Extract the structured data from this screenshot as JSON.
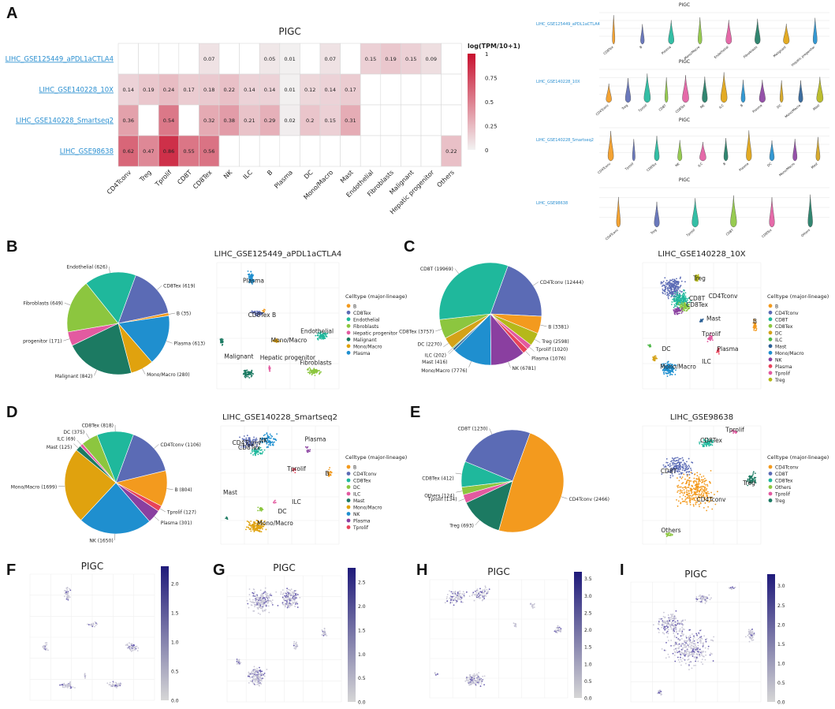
{
  "panels": {
    "A": "A",
    "B": "B",
    "C": "C",
    "D": "D",
    "E": "E",
    "F": "F",
    "G": "G",
    "H": "H",
    "I": "I"
  },
  "heatmap": {
    "title": "PIGC",
    "legend_title": "log(TPM/10+1)",
    "legend_ticks": [
      "1",
      "0.75",
      "0.5",
      "0.25",
      "0"
    ],
    "legend_tick_values": [
      1,
      0.75,
      0.5,
      0.25,
      0
    ],
    "rows": [
      "LIHC_GSE125449_aPDL1aCTLA4",
      "LIHC_GSE140228_10X",
      "LIHC_GSE140228_Smartseq2",
      "LIHC_GSE98638"
    ],
    "cols": [
      "CD4Tconv",
      "Treg",
      "Tprolif",
      "CD8T",
      "CD8Tex",
      "NK",
      "ILC",
      "B",
      "Plasma",
      "DC",
      "Mono/Macro",
      "Mast",
      "Endothelial",
      "Fibroblasts",
      "Malignant",
      "Hepatic progenitor",
      "Others"
    ],
    "cells": [
      [
        null,
        null,
        null,
        null,
        "0.07",
        null,
        null,
        "0.05",
        "0.01",
        null,
        "0.07",
        null,
        "0.15",
        "0.19",
        "0.15",
        "0.09",
        null
      ],
      [
        "0.14",
        "0.19",
        "0.24",
        "0.17",
        "0.18",
        "0.22",
        "0.14",
        "0.14",
        "0.01",
        "0.12",
        "0.14",
        "0.17",
        null,
        null,
        null,
        null,
        null
      ],
      [
        "0.36",
        null,
        "0.54",
        null,
        "0.32",
        "0.38",
        "0.21",
        "0.29",
        "0.02",
        "0.2",
        "0.15",
        "0.31",
        null,
        null,
        null,
        null,
        null
      ],
      [
        "0.62",
        "0.47",
        "0.86",
        "0.55",
        "0.56",
        null,
        null,
        null,
        null,
        null,
        null,
        null,
        null,
        null,
        null,
        null,
        "0.22"
      ]
    ]
  },
  "violin_blocks": [
    {
      "title": "PIGC",
      "label": "LIHC_GSE125449_aPDL1aCTLA4",
      "cats": [
        "CD8Tex",
        "B",
        "Plasma",
        "Mono/Macro",
        "Endothelial",
        "Fibroblasts",
        "Malignant",
        "Hepatic progenitor"
      ]
    },
    {
      "title": "PIGC",
      "label": "LIHC_GSE140228_10X",
      "cats": [
        "CD4Tconv",
        "Treg",
        "Tprolif",
        "CD8T",
        "CD8Tex",
        "NK",
        "ILC",
        "B",
        "Plasma",
        "DC",
        "Mono/Macro",
        "Mast"
      ]
    },
    {
      "title": "PIGC",
      "label": "LIHC_GSE140228_Smartseq2",
      "cats": [
        "CD4Tconv",
        "Tprolif",
        "CD8Tex",
        "NK",
        "ILC",
        "B",
        "Plasma",
        "DC",
        "Mono/Macro",
        "Mast"
      ]
    },
    {
      "title": "PIGC",
      "label": "LIHC_GSE98638",
      "cats": [
        "CD4Tconv",
        "Treg",
        "Tprolif",
        "CD8T",
        "CD8Tex",
        "Others"
      ]
    }
  ],
  "legend_title": "Celltype (major-lineage)",
  "pies": {
    "B": {
      "slices": [
        {
          "label": "CD8Tex (619)",
          "value": 619,
          "color": "#5b6bb5"
        },
        {
          "label": "B (35)",
          "value": 35,
          "color": "#f39a1e"
        },
        {
          "label": "Plasma (613)",
          "value": 613,
          "color": "#1f8fcf"
        },
        {
          "label": "Mono/Macro (280)",
          "value": 280,
          "color": "#e0a20e"
        },
        {
          "label": "Malignant (842)",
          "value": 842,
          "color": "#1c7a62"
        },
        {
          "label": "progenitor (171)",
          "value": 171,
          "color": "#e35aa0"
        },
        {
          "label": "Fibroblasts (649)",
          "value": 649,
          "color": "#8cc63f"
        },
        {
          "label": "Endothelial (626)",
          "value": 626,
          "color": "#1fb89c"
        }
      ]
    },
    "C": {
      "slices": [
        {
          "label": "CD4Tconv (12444)",
          "value": 12444,
          "color": "#5b6bb5"
        },
        {
          "label": "B (3381)",
          "value": 3381,
          "color": "#f39a1e"
        },
        {
          "label": "Treg (2598)",
          "value": 2598,
          "color": "#b5b81a"
        },
        {
          "label": "Tprolif (1020)",
          "value": 1020,
          "color": "#e35aa0"
        },
        {
          "label": "Plasma (1076)",
          "value": 1076,
          "color": "#e8435a"
        },
        {
          "label": "NK (6781)",
          "value": 6781,
          "color": "#8a3fa0"
        },
        {
          "label": "Mono/Macro (7776)",
          "value": 7776,
          "color": "#1f8fcf"
        },
        {
          "label": "Mast (416)",
          "value": 416,
          "color": "#2a5f95"
        },
        {
          "label": "ILC (202)",
          "value": 202,
          "color": "#50b84a"
        },
        {
          "label": "DC (2270)",
          "value": 2270,
          "color": "#d4a218"
        },
        {
          "label": "CD8Tex (3757)",
          "value": 3757,
          "color": "#8cc63f"
        },
        {
          "label": "CD8T (19969)",
          "value": 19969,
          "color": "#1fb89c"
        }
      ]
    },
    "D": {
      "slices": [
        {
          "label": "CD4Tconv (1106)",
          "value": 1106,
          "color": "#5b6bb5"
        },
        {
          "label": "B (804)",
          "value": 804,
          "color": "#f39a1e"
        },
        {
          "label": "Tprolif (127)",
          "value": 127,
          "color": "#e8435a"
        },
        {
          "label": "Plasma (301)",
          "value": 301,
          "color": "#8a3fa0"
        },
        {
          "label": "NK (1650)",
          "value": 1650,
          "color": "#1f8fcf"
        },
        {
          "label": "Mono/Macro (1699)",
          "value": 1699,
          "color": "#e0a20e"
        },
        {
          "label": "Mast (125)",
          "value": 125,
          "color": "#1c7a62"
        },
        {
          "label": "ILC (69)",
          "value": 69,
          "color": "#e35aa0"
        },
        {
          "label": "DC (375)",
          "value": 375,
          "color": "#8cc63f"
        },
        {
          "label": "CD8Tex (818)",
          "value": 818,
          "color": "#1fb89c"
        }
      ]
    },
    "E": {
      "slices": [
        {
          "label": "CD4Tconv (2466)",
          "value": 2466,
          "color": "#f39a1e"
        },
        {
          "label": "Treg (693)",
          "value": 693,
          "color": "#1c7a62"
        },
        {
          "label": "Tprolif (134)",
          "value": 134,
          "color": "#e35aa0"
        },
        {
          "label": "Others (124)",
          "value": 124,
          "color": "#8cc63f"
        },
        {
          "label": "CD8Tex (412)",
          "value": 412,
          "color": "#1fb89c"
        },
        {
          "label": "CD8T (1230)",
          "value": 1230,
          "color": "#5b6bb5"
        }
      ]
    }
  },
  "umaps": {
    "B": {
      "title": "LIHC_GSE125449_aPDL1aCTLA4",
      "legend": [
        [
          "B",
          "#f39a1e"
        ],
        [
          "CD8Tex",
          "#5b6bb5"
        ],
        [
          "Endothelial",
          "#1fb89c"
        ],
        [
          "Fibroblasts",
          "#8cc63f"
        ],
        [
          "Hepatic progenitor",
          "#e35aa0"
        ],
        [
          "Malignant",
          "#1c7a62"
        ],
        [
          "Mono/Macro",
          "#e0a20e"
        ],
        [
          "Plasma",
          "#1f8fcf"
        ]
      ],
      "labels": [
        "Plasma",
        "CD8Tex B",
        "Endothelial",
        "Mono/Macro",
        "Malignant",
        "Hepatic progenitor",
        "Fibroblasts"
      ]
    },
    "C": {
      "title": "LIHC_GSE140228_10X",
      "legend": [
        [
          "B",
          "#f39a1e"
        ],
        [
          "CD4Tconv",
          "#5b6bb5"
        ],
        [
          "CD8T",
          "#1fb89c"
        ],
        [
          "CD8Tex",
          "#8cc63f"
        ],
        [
          "DC",
          "#d4a218"
        ],
        [
          "ILC",
          "#50b84a"
        ],
        [
          "Mast",
          "#2a5f95"
        ],
        [
          "Mono/Macro",
          "#1f8fcf"
        ],
        [
          "NK",
          "#8a3fa0"
        ],
        [
          "Plasma",
          "#e8435a"
        ],
        [
          "Tprolif",
          "#e35aa0"
        ],
        [
          "Treg",
          "#b5b81a"
        ]
      ],
      "labels": [
        "Treg",
        "CD8T",
        "CD8Tex",
        "CD4Tconv",
        "Mast",
        "B",
        "Tprolif",
        "Plasma",
        "DC",
        "Mono/Macro",
        "ILC"
      ]
    },
    "D": {
      "title": "LIHC_GSE140228_Smartseq2",
      "legend": [
        [
          "B",
          "#f39a1e"
        ],
        [
          "CD4Tconv",
          "#5b6bb5"
        ],
        [
          "CD8Tex",
          "#1fb89c"
        ],
        [
          "DC",
          "#8cc63f"
        ],
        [
          "ILC",
          "#e35aa0"
        ],
        [
          "Mast",
          "#1c7a62"
        ],
        [
          "Mono/Macro",
          "#e0a20e"
        ],
        [
          "NK",
          "#1f8fcf"
        ],
        [
          "Plasma",
          "#8a3fa0"
        ],
        [
          "Tprolif",
          "#e8435a"
        ]
      ],
      "labels": [
        "CD4Tconv",
        "NK",
        "CD8Tex",
        "Plasma",
        "Tprolif",
        "B",
        "Mast",
        "ILC",
        "DC",
        "Mono/Macro"
      ]
    },
    "E": {
      "title": "LIHC_GSE98638",
      "legend": [
        [
          "CD4Tconv",
          "#f39a1e"
        ],
        [
          "CD8T",
          "#5b6bb5"
        ],
        [
          "CD8Tex",
          "#1fb89c"
        ],
        [
          "Others",
          "#8cc63f"
        ],
        [
          "Tprolif",
          "#e35aa0"
        ],
        [
          "Treg",
          "#1c7a62"
        ]
      ],
      "labels": [
        "Tprolif",
        "CD8Tex",
        "CD8T",
        "Treg",
        "CD4Tconv",
        "Others"
      ]
    }
  },
  "features": {
    "F": {
      "title": "PIGC",
      "ticks": [
        "2.0",
        "1.5",
        "1.0",
        "0.5",
        "0.0"
      ],
      "tick_values": [
        2.0,
        1.5,
        1.0,
        0.5,
        0.0
      ],
      "max": 2.3
    },
    "G": {
      "title": "PIGC",
      "ticks": [
        "2.5",
        "2.0",
        "1.5",
        "1.0",
        "0.5",
        "0.0"
      ],
      "tick_values": [
        2.5,
        2.0,
        1.5,
        1.0,
        0.5,
        0.0
      ],
      "max": 2.8
    },
    "H": {
      "title": "PIGC",
      "ticks": [
        "3.5",
        "3.0",
        "2.5",
        "2.0",
        "1.5",
        "1.0",
        "0.5",
        "0.0"
      ],
      "tick_values": [
        3.5,
        3.0,
        2.5,
        2.0,
        1.5,
        1.0,
        0.5,
        0.0
      ],
      "max": 3.7
    },
    "I": {
      "title": "PIGC",
      "ticks": [
        "3.0",
        "2.5",
        "2.0",
        "1.5",
        "1.0",
        "0.5",
        "0.0"
      ],
      "tick_values": [
        3.0,
        2.5,
        2.0,
        1.5,
        1.0,
        0.5,
        0.0
      ],
      "max": 3.3
    }
  }
}
